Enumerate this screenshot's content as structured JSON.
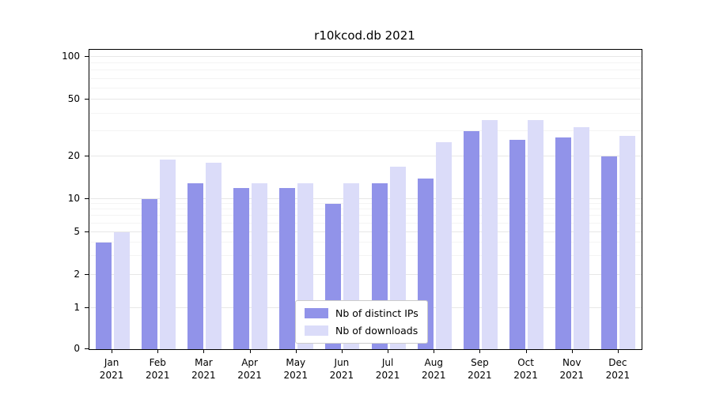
{
  "chart_data": {
    "type": "bar",
    "title": "r10kcod.db 2021",
    "x_year": "2021",
    "categories": [
      "Jan",
      "Feb",
      "Mar",
      "Apr",
      "May",
      "Jun",
      "Jul",
      "Aug",
      "Sep",
      "Oct",
      "Nov",
      "Dec"
    ],
    "series": [
      {
        "name": "Nb of distinct IPs",
        "color": "#9193e9",
        "values": [
          4,
          10,
          13,
          12,
          12,
          9,
          13,
          14,
          30,
          26,
          27,
          20
        ]
      },
      {
        "name": "Nb of downloads",
        "color": "#dbdcf9",
        "values": [
          5,
          19,
          18,
          13,
          13,
          13,
          17,
          25,
          36,
          36,
          32,
          28
        ]
      }
    ],
    "yscale": "symlog",
    "yticks": [
      0,
      1,
      2,
      5,
      10,
      20,
      50,
      100
    ],
    "minor_yticks": [
      3,
      4,
      6,
      7,
      8,
      9,
      30,
      40,
      60,
      70,
      80,
      90
    ],
    "ylim": [
      0,
      115
    ],
    "grid": "on",
    "legend_position": "lower center"
  }
}
